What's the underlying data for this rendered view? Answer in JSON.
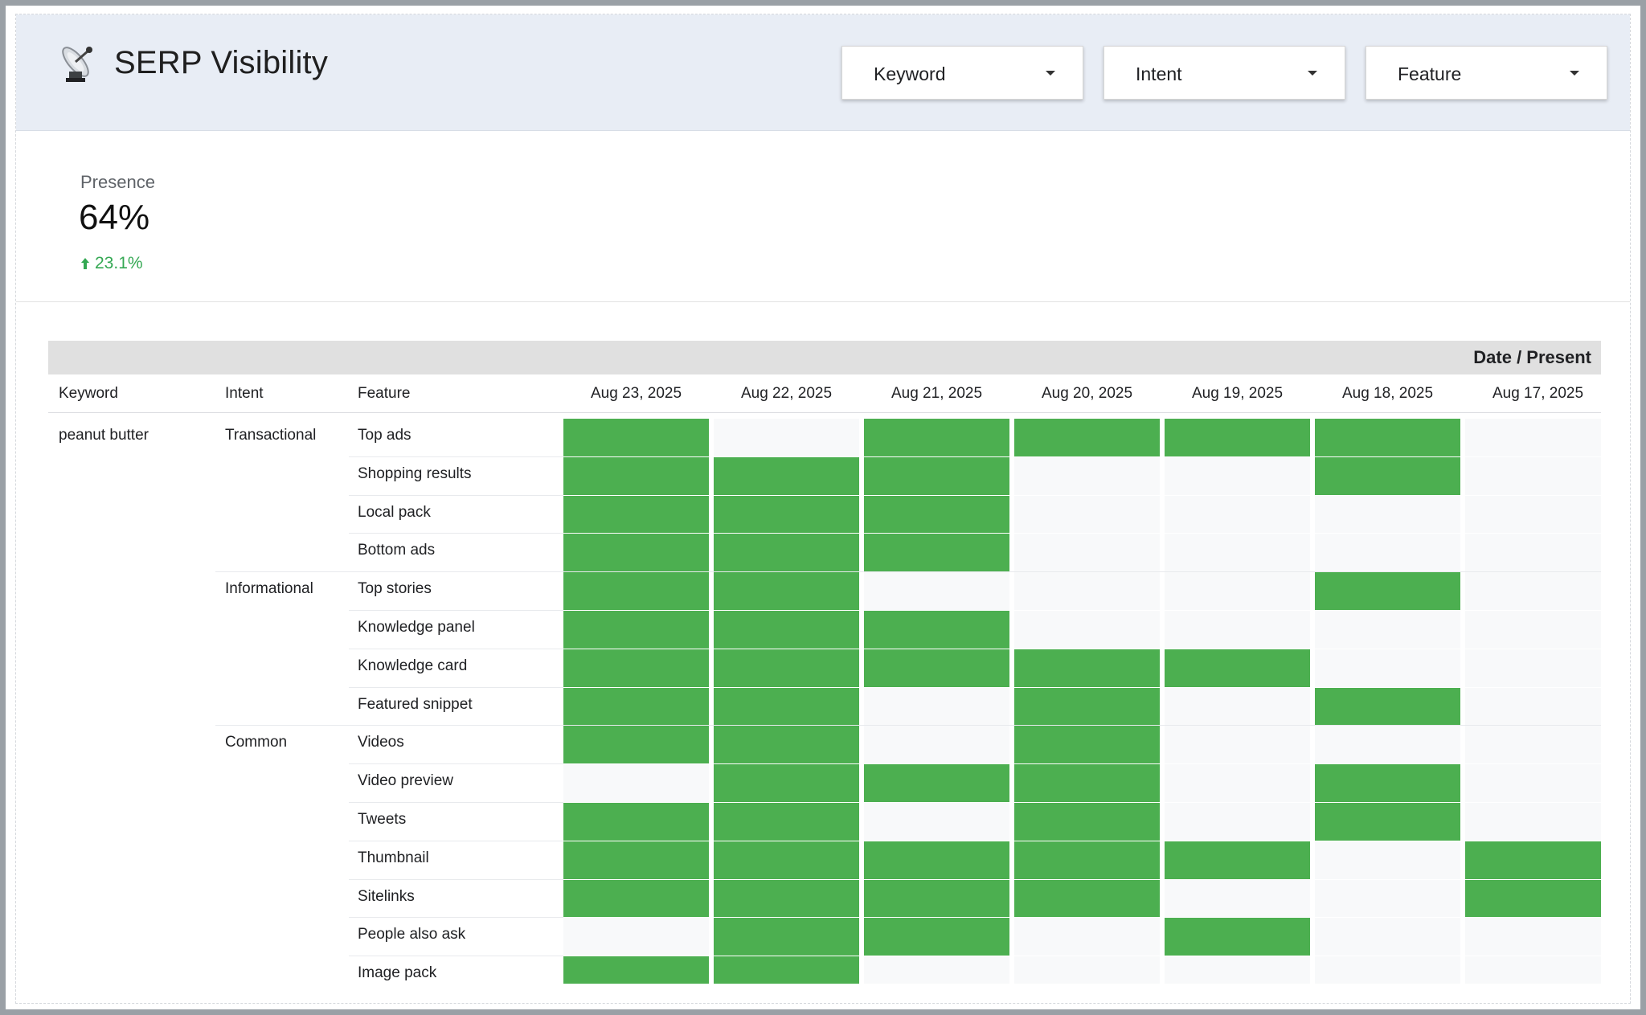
{
  "header": {
    "title": "SERP Visibility",
    "logo_icon": "satellite-dish-icon",
    "filters": [
      {
        "label": "Keyword"
      },
      {
        "label": "Intent"
      },
      {
        "label": "Feature"
      }
    ]
  },
  "scorecard": {
    "label": "Presence",
    "value": "64%",
    "delta": "23.1%",
    "delta_direction": "up",
    "delta_color": "#34a853"
  },
  "table": {
    "top_label": "Date / Present",
    "columns": {
      "keyword": "Keyword",
      "intent": "Intent",
      "feature": "Feature"
    },
    "dates": [
      "Aug 23, 2025",
      "Aug 22, 2025",
      "Aug 21, 2025",
      "Aug 20, 2025",
      "Aug 19, 2025",
      "Aug 18, 2025",
      "Aug 17, 2025"
    ],
    "present_color": "#4caf50",
    "absent_color": "#f8f9fa",
    "rows": [
      {
        "keyword": "peanut butter",
        "intent": "Transactional",
        "feature": "Top ads",
        "presence": [
          1,
          0,
          1,
          1,
          1,
          1,
          0
        ]
      },
      {
        "keyword": "",
        "intent": "",
        "feature": "Shopping results",
        "presence": [
          1,
          1,
          1,
          0,
          0,
          1,
          0
        ]
      },
      {
        "keyword": "",
        "intent": "",
        "feature": "Local pack",
        "presence": [
          1,
          1,
          1,
          0,
          0,
          0,
          0
        ]
      },
      {
        "keyword": "",
        "intent": "",
        "feature": "Bottom ads",
        "presence": [
          1,
          1,
          1,
          0,
          0,
          0,
          0
        ]
      },
      {
        "keyword": "",
        "intent": "Informational",
        "feature": "Top stories",
        "presence": [
          1,
          1,
          0,
          0,
          0,
          1,
          0
        ]
      },
      {
        "keyword": "",
        "intent": "",
        "feature": "Knowledge panel",
        "presence": [
          1,
          1,
          1,
          0,
          0,
          0,
          0
        ]
      },
      {
        "keyword": "",
        "intent": "",
        "feature": "Knowledge card",
        "presence": [
          1,
          1,
          1,
          1,
          1,
          0,
          0
        ]
      },
      {
        "keyword": "",
        "intent": "",
        "feature": "Featured snippet",
        "presence": [
          1,
          1,
          0,
          1,
          0,
          1,
          0
        ]
      },
      {
        "keyword": "",
        "intent": "Common",
        "feature": "Videos",
        "presence": [
          1,
          1,
          0,
          1,
          0,
          0,
          0
        ]
      },
      {
        "keyword": "",
        "intent": "",
        "feature": "Video preview",
        "presence": [
          0,
          1,
          1,
          1,
          0,
          1,
          0
        ]
      },
      {
        "keyword": "",
        "intent": "",
        "feature": "Tweets",
        "presence": [
          1,
          1,
          0,
          1,
          0,
          1,
          0
        ]
      },
      {
        "keyword": "",
        "intent": "",
        "feature": "Thumbnail",
        "presence": [
          1,
          1,
          1,
          1,
          1,
          0,
          1
        ]
      },
      {
        "keyword": "",
        "intent": "",
        "feature": "Sitelinks",
        "presence": [
          1,
          1,
          1,
          1,
          0,
          0,
          1
        ]
      },
      {
        "keyword": "",
        "intent": "",
        "feature": "People also ask",
        "presence": [
          0,
          1,
          1,
          0,
          1,
          0,
          0
        ]
      },
      {
        "keyword": "",
        "intent": "",
        "feature": "Image pack",
        "presence": [
          1,
          1,
          0,
          0,
          0,
          0,
          0
        ]
      }
    ]
  }
}
